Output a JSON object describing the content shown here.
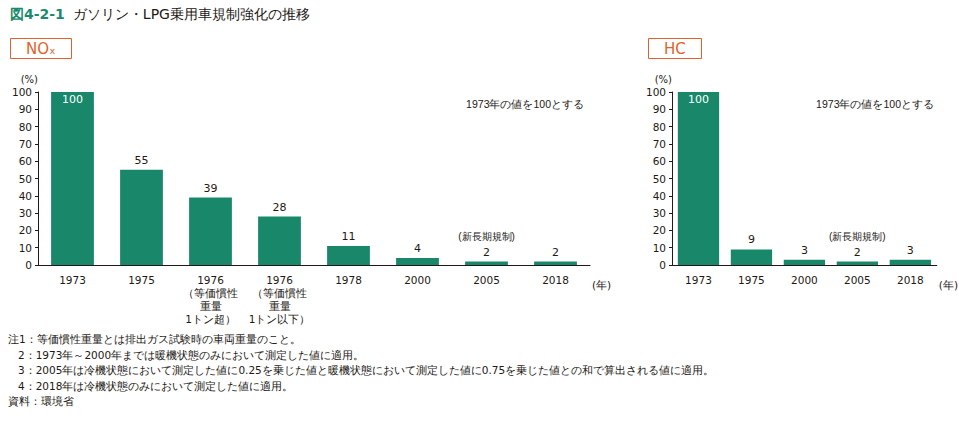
{
  "title": "図4-2-1　ガソリン・LPG乗用車規制強化の推移",
  "notes": [
    "注1：等価慣性重量とは排出ガス試験時の車両重量のこと。",
    "2：1973年～2000年までは暖機状態のみにおいて測定した値に適用。",
    "3：2005年は冷機状態において測定した値に0.25を乗じた値と暖機状態において測定した値に0.75を乗じた値との和で算出される値に適用。",
    "4：2018年は冷機状態のみにおいて測定した値に適用。"
  ],
  "source": "資料：環境省",
  "chart_data": [
    {
      "type": "bar",
      "title": "NOₓ",
      "y_label": "(%)",
      "x_label": "(年)",
      "categories": [
        "1973",
        "1975",
        "1976\n（等価慣性\n重量\n1トン超）",
        "1976\n（等価慣性\n重量\n1トン以下）",
        "1978",
        "2000",
        "2005",
        "2018"
      ],
      "values": [
        100,
        55,
        39,
        28,
        11,
        4,
        2,
        2
      ],
      "color": "#18876a",
      "ylim": [
        0,
        100
      ],
      "yticks": [
        0,
        10,
        20,
        30,
        40,
        50,
        60,
        70,
        80,
        90,
        100
      ],
      "grid": false,
      "data_labels": true,
      "annotations": [
        {
          "text": "1973年の値を100とする"
        },
        {
          "text": "(新長期規制)",
          "category": "2005"
        }
      ]
    },
    {
      "type": "bar",
      "title": "HC",
      "y_label": "(%)",
      "x_label": "(年)",
      "categories": [
        "1973",
        "1975",
        "2000",
        "2005",
        "2018"
      ],
      "values": [
        100,
        9,
        3,
        2,
        3
      ],
      "color": "#18876a",
      "ylim": [
        0,
        100
      ],
      "yticks": [
        0,
        10,
        20,
        30,
        40,
        50,
        60,
        70,
        80,
        90,
        100
      ],
      "grid": false,
      "data_labels": true,
      "annotations": [
        {
          "text": "1973年の値を100とする"
        },
        {
          "text": "(新長期規制)",
          "category": "2005"
        }
      ]
    }
  ]
}
